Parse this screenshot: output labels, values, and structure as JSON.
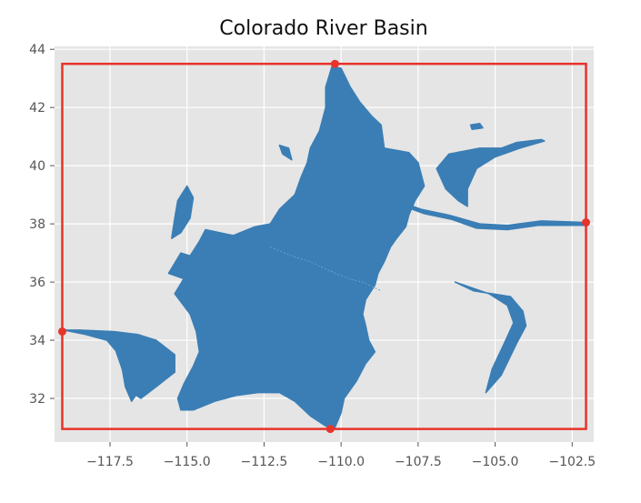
{
  "chart_data": {
    "type": "map",
    "title": "Colorado River Basin",
    "xlabel": "",
    "ylabel": "",
    "xlim": [
      -119.3,
      -101.8
    ],
    "ylim": [
      30.5,
      44.1
    ],
    "x_ticks": [
      -117.5,
      -115.0,
      -112.5,
      -110.0,
      -107.5,
      -105.0,
      -102.5
    ],
    "x_tick_labels": [
      "−117.5",
      "−115.0",
      "−112.5",
      "−110.0",
      "−107.5",
      "−105.0",
      "−102.5"
    ],
    "y_ticks": [
      32,
      34,
      36,
      38,
      40,
      42,
      44
    ],
    "y_tick_labels": [
      "32",
      "34",
      "36",
      "38",
      "40",
      "42",
      "44"
    ],
    "grid": true,
    "background": "#e5e5e5",
    "basin_color": "#3a7eb5",
    "bbox_color": "#e8332a",
    "bounding_box": {
      "xmin": -119.05,
      "xmax": -102.05,
      "ymin": 30.95,
      "ymax": 43.5
    },
    "extreme_points": [
      {
        "name": "north",
        "x": -110.2,
        "y": 43.5
      },
      {
        "name": "south",
        "x": -110.35,
        "y": 30.95
      },
      {
        "name": "west",
        "x": -119.05,
        "y": 34.3
      },
      {
        "name": "east",
        "x": -102.05,
        "y": 38.05
      }
    ],
    "main_basin": [
      [
        -110.3,
        43.4
      ],
      [
        -110.0,
        43.35
      ],
      [
        -109.7,
        42.7
      ],
      [
        -109.4,
        42.2
      ],
      [
        -109.0,
        41.7
      ],
      [
        -108.7,
        41.4
      ],
      [
        -108.6,
        40.6
      ],
      [
        -107.8,
        40.45
      ],
      [
        -107.5,
        40.1
      ],
      [
        -107.3,
        39.3
      ],
      [
        -107.6,
        38.8
      ],
      [
        -107.8,
        38.3
      ],
      [
        -107.9,
        37.9
      ],
      [
        -108.2,
        37.5
      ],
      [
        -108.4,
        37.2
      ],
      [
        -108.6,
        36.7
      ],
      [
        -108.8,
        36.3
      ],
      [
        -108.9,
        35.9
      ],
      [
        -109.2,
        35.4
      ],
      [
        -109.3,
        34.9
      ],
      [
        -109.2,
        34.5
      ],
      [
        -109.1,
        34.0
      ],
      [
        -108.9,
        33.6
      ],
      [
        -109.2,
        33.2
      ],
      [
        -109.5,
        32.6
      ],
      [
        -109.9,
        32.0
      ],
      [
        -110.0,
        31.5
      ],
      [
        -110.2,
        31.0
      ],
      [
        -110.5,
        31.05
      ],
      [
        -111.0,
        31.4
      ],
      [
        -111.5,
        31.9
      ],
      [
        -112.0,
        32.2
      ],
      [
        -112.7,
        32.2
      ],
      [
        -113.4,
        32.1
      ],
      [
        -114.1,
        31.9
      ],
      [
        -114.8,
        31.6
      ],
      [
        -115.2,
        31.6
      ],
      [
        -115.3,
        32.0
      ],
      [
        -115.1,
        32.5
      ],
      [
        -114.8,
        33.1
      ],
      [
        -114.6,
        33.6
      ],
      [
        -114.7,
        34.3
      ],
      [
        -114.9,
        34.9
      ],
      [
        -115.4,
        35.6
      ],
      [
        -115.0,
        36.3
      ],
      [
        -114.9,
        36.9
      ],
      [
        -114.6,
        37.4
      ],
      [
        -114.4,
        37.8
      ],
      [
        -113.5,
        37.6
      ],
      [
        -112.8,
        37.9
      ],
      [
        -112.3,
        38.0
      ],
      [
        -112.0,
        38.5
      ],
      [
        -111.5,
        39.0
      ],
      [
        -111.3,
        39.6
      ],
      [
        -111.1,
        40.1
      ],
      [
        -111.0,
        40.6
      ],
      [
        -110.7,
        41.2
      ],
      [
        -110.5,
        42.0
      ],
      [
        -110.5,
        42.7
      ]
    ],
    "sub_basin_boundary": [
      [
        -112.3,
        37.2
      ],
      [
        -111.6,
        36.9
      ],
      [
        -111.0,
        36.7
      ],
      [
        -110.4,
        36.4
      ],
      [
        -109.7,
        36.1
      ],
      [
        -109.3,
        36.0
      ],
      [
        -108.7,
        35.7
      ]
    ],
    "western_arm": [
      [
        -119.0,
        34.35
      ],
      [
        -118.3,
        34.2
      ],
      [
        -117.6,
        34.0
      ],
      [
        -117.2,
        33.5
      ],
      [
        -117.1,
        33.0
      ],
      [
        -116.9,
        32.3
      ],
      [
        -116.5,
        32.0
      ],
      [
        -116.0,
        32.4
      ],
      [
        -115.4,
        32.9
      ],
      [
        -115.4,
        33.5
      ],
      [
        -116.0,
        34.0
      ],
      [
        -116.6,
        34.2
      ],
      [
        -117.4,
        34.3
      ],
      [
        -118.5,
        34.35
      ]
    ],
    "southern_spit": [
      [
        -117.3,
        33.6
      ],
      [
        -117.0,
        33.3
      ],
      [
        -116.6,
        32.8
      ],
      [
        -116.6,
        32.2
      ],
      [
        -116.8,
        31.9
      ],
      [
        -117.0,
        32.4
      ],
      [
        -117.1,
        33.0
      ]
    ],
    "northwest_lobe": [
      [
        -115.0,
        39.3
      ],
      [
        -114.8,
        38.9
      ],
      [
        -114.9,
        38.2
      ],
      [
        -115.2,
        37.7
      ],
      [
        -115.5,
        37.5
      ],
      [
        -115.4,
        38.2
      ],
      [
        -115.3,
        38.8
      ]
    ],
    "west_lobe": [
      [
        -115.6,
        36.3
      ],
      [
        -114.8,
        36.0
      ],
      [
        -114.6,
        36.8
      ],
      [
        -115.2,
        37.0
      ]
    ],
    "northern_sliver": [
      [
        -112.0,
        40.7
      ],
      [
        -111.9,
        40.4
      ],
      [
        -111.6,
        40.2
      ],
      [
        -111.7,
        40.6
      ]
    ],
    "northeast_river": [
      [
        -106.9,
        39.9
      ],
      [
        -106.5,
        40.4
      ],
      [
        -106.0,
        40.5
      ],
      [
        -105.5,
        40.6
      ],
      [
        -104.8,
        40.6
      ],
      [
        -104.3,
        40.8
      ],
      [
        -103.5,
        40.9
      ],
      [
        -103.4,
        40.85
      ],
      [
        -104.2,
        40.6
      ],
      [
        -105.0,
        40.3
      ],
      [
        -105.6,
        39.9
      ],
      [
        -105.9,
        39.2
      ],
      [
        -105.9,
        38.6
      ],
      [
        -106.2,
        38.8
      ],
      [
        -106.6,
        39.2
      ]
    ],
    "east_river": [
      [
        -108.2,
        38.8
      ],
      [
        -107.4,
        38.5
      ],
      [
        -106.5,
        38.3
      ],
      [
        -105.5,
        38.0
      ],
      [
        -104.6,
        37.95
      ],
      [
        -103.5,
        38.1
      ],
      [
        -102.1,
        38.05
      ],
      [
        -102.1,
        37.95
      ],
      [
        -103.6,
        37.95
      ],
      [
        -104.6,
        37.8
      ],
      [
        -105.6,
        37.85
      ],
      [
        -106.4,
        38.15
      ],
      [
        -107.3,
        38.35
      ],
      [
        -108.2,
        38.7
      ]
    ],
    "east_tributary": [
      [
        -104.5,
        35.5
      ],
      [
        -104.1,
        35.0
      ],
      [
        -104.0,
        34.5
      ],
      [
        -104.3,
        33.9
      ],
      [
        -104.8,
        32.8
      ],
      [
        -105.3,
        32.2
      ],
      [
        -105.1,
        33.0
      ],
      [
        -104.7,
        33.9
      ],
      [
        -104.4,
        34.6
      ],
      [
        -104.6,
        35.2
      ],
      [
        -105.2,
        35.6
      ],
      [
        -106.3,
        36.0
      ],
      [
        -105.7,
        35.7
      ]
    ],
    "small_island": [
      [
        -105.8,
        41.4
      ],
      [
        -105.5,
        41.45
      ],
      [
        -105.4,
        41.3
      ],
      [
        -105.75,
        41.25
      ]
    ]
  }
}
